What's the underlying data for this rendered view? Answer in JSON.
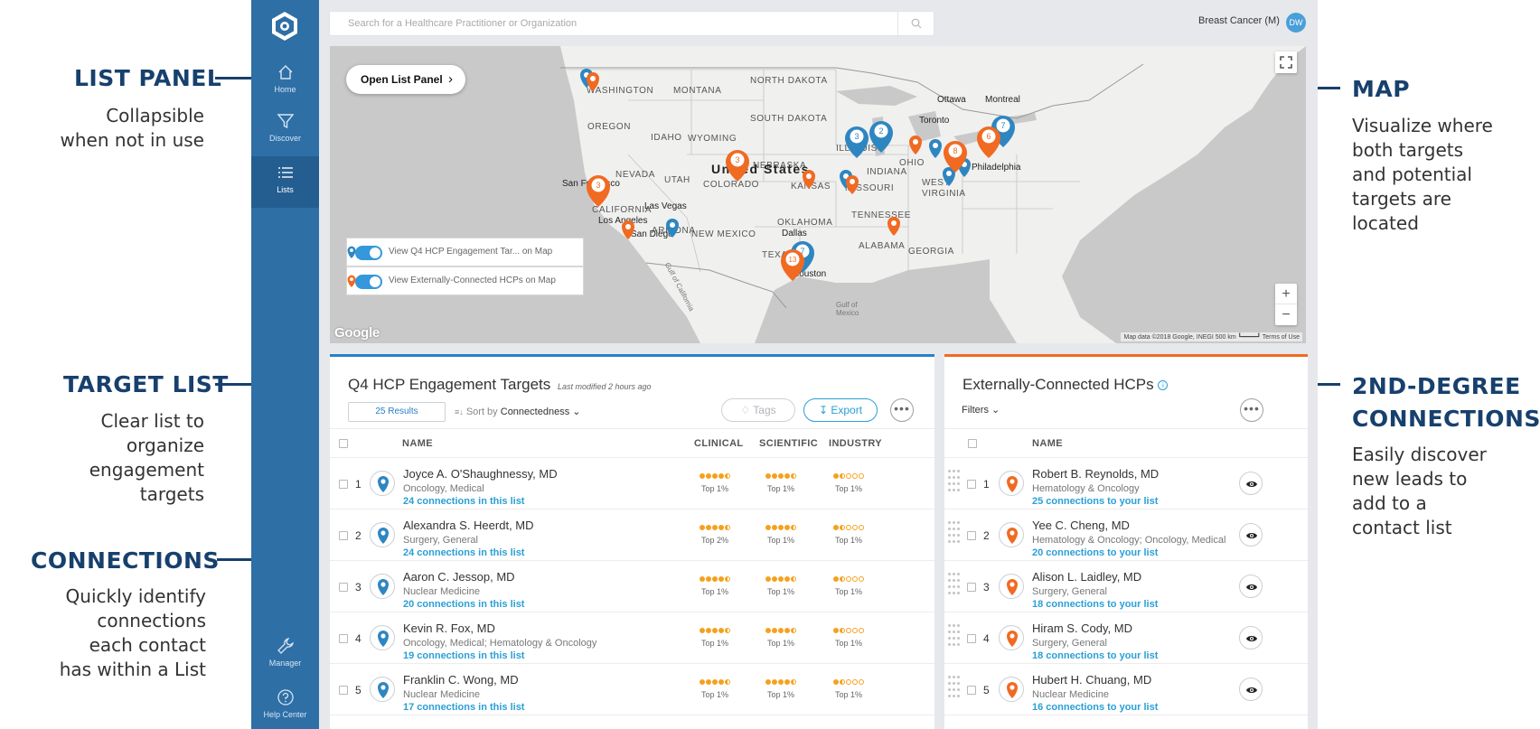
{
  "annotations": {
    "list_panel": {
      "title": "LIST PANEL",
      "lines": [
        "Collapsible",
        "when not in use"
      ]
    },
    "target_list": {
      "title": "TARGET LIST",
      "lines": [
        "Clear list to",
        "organize",
        "engagement",
        "targets"
      ]
    },
    "connections": {
      "title": "CONNECTIONS",
      "lines": [
        "Quickly identify",
        "connections",
        "each contact",
        "has within a List"
      ]
    },
    "map": {
      "title": "MAP",
      "lines": [
        "Visualize where",
        "both targets",
        "and potential",
        "targets are",
        "located"
      ]
    },
    "second_degree": {
      "title_line1": "2ND-DEGREE",
      "title_line2": "CONNECTIONS",
      "lines": [
        "Easily discover",
        "new leads to",
        "add to a",
        "contact list"
      ]
    }
  },
  "sidebar": {
    "items": [
      {
        "label": "Home",
        "icon": "home-icon"
      },
      {
        "label": "Discover",
        "icon": "filter-icon"
      },
      {
        "label": "Lists",
        "icon": "list-icon"
      },
      {
        "label": "Manager",
        "icon": "wrench-icon"
      },
      {
        "label": "Help Center",
        "icon": "help-icon"
      }
    ]
  },
  "search": {
    "placeholder": "Search for a Healthcare Practitioner or Organization"
  },
  "topbar": {
    "context": "Breast Cancer (M)",
    "avatar_initials": "DW"
  },
  "colors": {
    "target_blue": "#2e86c1",
    "external_orange": "#f06a22",
    "sidebar": "#2e6fa6",
    "accent": "#2a9fd6"
  },
  "map": {
    "open_list_panel": "Open List Panel",
    "toggle_targets": "View Q4 HCP Engagement Tar... on Map",
    "toggle_external": "View Externally-Connected HCPs on Map",
    "google": "Google",
    "credit": "Map data ©2018 Google, INEGI   500 km ┗━━━━┛   Terms of Use",
    "zoom_in": "+",
    "zoom_out": "−",
    "labels": {
      "country": "United States",
      "washington": "WASHINGTON",
      "montana": "MONTANA",
      "north_dakota": "NORTH\nDAKOTA",
      "south_dakota": "SOUTH\nDAKOTA",
      "oregon": "OREGON",
      "idaho": "IDAHO",
      "wyoming": "WYOMING",
      "nebraska": "NEBRASKA",
      "nevada": "NEVADA",
      "utah": "UTAH",
      "colorado": "COLORADO",
      "kansas": "KANSAS",
      "missouri": "MISSOURI",
      "illinois": "ILLINOIS",
      "indiana": "INDIANA",
      "ohio": "OHIO",
      "california": "CALIFORNIA",
      "arizona": "ARIZONA",
      "new_mexico": "NEW MEXICO",
      "oklahoma": "OKLAHOMA",
      "texas": "TEXAS",
      "tennessee": "TENNESSEE",
      "alabama": "ALABAMA",
      "georgia": "GEORGIA",
      "west": "WEST",
      "virginia": "VIRGINIA",
      "ottawa": "Ottawa",
      "montreal": "Montreal",
      "toronto": "Toronto",
      "philadelphia": "Philadelphia",
      "san_francisco": "San Francisco",
      "las_vegas": "Las Vegas",
      "los_angeles": "Los Angeles",
      "san_diego": "San Diego",
      "dallas": "Dallas",
      "houston": "Houston",
      "gulf_of_california": "Gulf of California",
      "gulf_of_mexico": "Gulf of\nMexico"
    },
    "cluster_counts": {
      "a": "3",
      "b": "3",
      "c": "2",
      "d": "3",
      "e": "8",
      "f": "6",
      "g": "7",
      "h": "7",
      "i": "13"
    }
  },
  "target_list": {
    "title": "Q4 HCP Engagement Targets",
    "last_modified": "Last modified 2 hours ago",
    "results": "25 Results",
    "sort_label": "Sort by",
    "sort_value": "Connectedness",
    "tags": "Tags",
    "export": "Export",
    "more": "•••",
    "columns": {
      "name": "NAME",
      "clinical": "CLINICAL",
      "scientific": "SCIENTIFIC",
      "industry": "INDUSTRY"
    },
    "rows": [
      {
        "num": "1",
        "name": "Joyce A. O'Shaughnessy, MD",
        "specialty": "Oncology, Medical",
        "connections": "24 connections in this list",
        "clinical": "Top 1%",
        "scientific": "Top 1%",
        "industry": "Top 1%",
        "clinical_rating": 4.5,
        "scientific_rating": 4.5,
        "industry_rating": 1.5
      },
      {
        "num": "2",
        "name": "Alexandra S. Heerdt, MD",
        "specialty": "Surgery, General",
        "connections": "24 connections in this list",
        "clinical": "Top 2%",
        "scientific": "Top 1%",
        "industry": "Top 1%",
        "clinical_rating": 4.5,
        "scientific_rating": 4.5,
        "industry_rating": 1.5
      },
      {
        "num": "3",
        "name": "Aaron C. Jessop, MD",
        "specialty": "Nuclear Medicine",
        "connections": "20 connections in this list",
        "clinical": "Top 1%",
        "scientific": "Top 1%",
        "industry": "Top 1%",
        "clinical_rating": 4.5,
        "scientific_rating": 4.5,
        "industry_rating": 1.5
      },
      {
        "num": "4",
        "name": "Kevin R. Fox, MD",
        "specialty": "Oncology, Medical; Hematology & Oncology",
        "connections": "19 connections in this list",
        "clinical": "Top 1%",
        "scientific": "Top 1%",
        "industry": "Top 1%",
        "clinical_rating": 4.5,
        "scientific_rating": 4.5,
        "industry_rating": 1.5
      },
      {
        "num": "5",
        "name": "Franklin C. Wong, MD",
        "specialty": "Nuclear Medicine",
        "connections": "17 connections in this list",
        "clinical": "Top 1%",
        "scientific": "Top 1%",
        "industry": "Top 1%",
        "clinical_rating": 4.5,
        "scientific_rating": 4.5,
        "industry_rating": 1.5
      }
    ]
  },
  "external_list": {
    "title": "Externally-Connected HCPs",
    "filters": "Filters",
    "more": "•••",
    "columns": {
      "name": "NAME"
    },
    "rows": [
      {
        "num": "1",
        "name": "Robert B. Reynolds, MD",
        "specialty": "Hematology & Oncology",
        "connections": "25 connections to your list"
      },
      {
        "num": "2",
        "name": "Yee C. Cheng, MD",
        "specialty": "Hematology & Oncology; Oncology, Medical",
        "connections": "20 connections to your list"
      },
      {
        "num": "3",
        "name": "Alison L. Laidley, MD",
        "specialty": "Surgery, General",
        "connections": "18 connections to your list"
      },
      {
        "num": "4",
        "name": "Hiram S. Cody, MD",
        "specialty": "Surgery, General",
        "connections": "18 connections to your list"
      },
      {
        "num": "5",
        "name": "Hubert H. Chuang, MD",
        "specialty": "Nuclear Medicine",
        "connections": "16 connections to your list"
      }
    ]
  }
}
